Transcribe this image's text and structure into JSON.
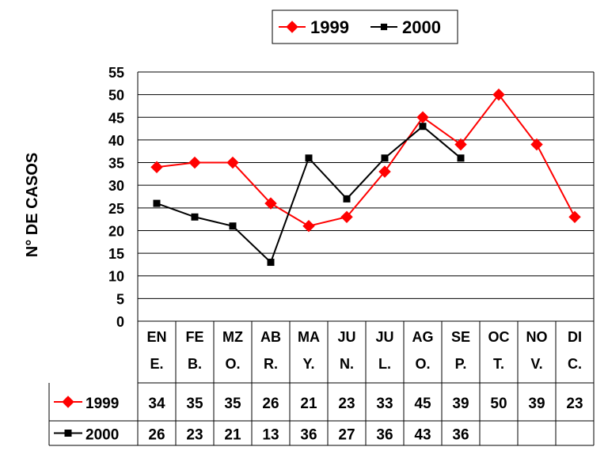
{
  "chart_data": {
    "type": "line",
    "title": "",
    "xlabel": "",
    "ylabel": "N° DE CASOS",
    "ylim": [
      0,
      55
    ],
    "yticks": [
      0,
      5,
      10,
      15,
      20,
      25,
      30,
      35,
      40,
      45,
      50,
      55
    ],
    "grid": true,
    "legend_position": "top",
    "categories": [
      [
        "EN",
        "E."
      ],
      [
        "FE",
        "B."
      ],
      [
        "MZ",
        "O."
      ],
      [
        "AB",
        "R."
      ],
      [
        "MA",
        "Y."
      ],
      [
        "JU",
        "N."
      ],
      [
        "JU",
        "L."
      ],
      [
        "AG",
        "O."
      ],
      [
        "SE",
        "P."
      ],
      [
        "OC",
        "T."
      ],
      [
        "NO",
        "V."
      ],
      [
        "DI",
        "C."
      ]
    ],
    "series": [
      {
        "name": "1999",
        "color": "#ff0000",
        "marker": "diamond",
        "values": [
          34,
          35,
          35,
          26,
          21,
          23,
          33,
          45,
          39,
          50,
          39,
          23
        ]
      },
      {
        "name": "2000",
        "color": "#000000",
        "marker": "square",
        "values": [
          26,
          23,
          21,
          13,
          36,
          27,
          36,
          43,
          36,
          null,
          null,
          null
        ]
      }
    ]
  }
}
